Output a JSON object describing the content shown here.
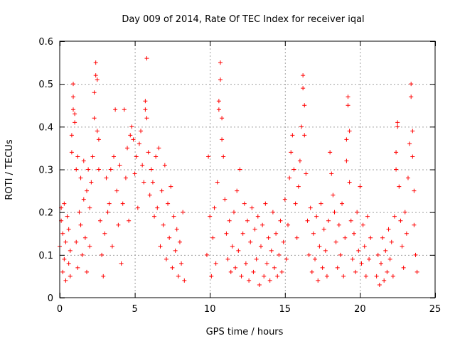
{
  "chart_data": {
    "type": "scatter",
    "title": "Day 009 of 2014, Rate Of TEC Index for receiver iqal",
    "xlabel": "GPS time / hours",
    "ylabel": "ROTI / TECUs",
    "xlim": [
      0,
      25
    ],
    "ylim": [
      0,
      0.6
    ],
    "xticks": [
      0,
      5,
      10,
      15,
      20,
      25
    ],
    "xtick_labels": [
      "0",
      "5",
      "10",
      "15",
      "20",
      "25"
    ],
    "yticks": [
      0,
      0.1,
      0.2,
      0.3,
      0.4,
      0.5,
      0.6
    ],
    "ytick_labels": [
      "0",
      "0.1",
      "0.2",
      "0.3",
      "0.4",
      "0.5",
      "0.6"
    ],
    "grid": true,
    "marker": "+",
    "color": "#ff0000",
    "series": [
      {
        "name": "ROTI",
        "points": [
          [
            0.0,
            0.12
          ],
          [
            0.1,
            0.18
          ],
          [
            0.1,
            0.21
          ],
          [
            0.2,
            0.06
          ],
          [
            0.2,
            0.15
          ],
          [
            0.3,
            0.22
          ],
          [
            0.3,
            0.09
          ],
          [
            0.4,
            0.04
          ],
          [
            0.4,
            0.13
          ],
          [
            0.5,
            0.19
          ],
          [
            0.6,
            0.08
          ],
          [
            0.6,
            0.16
          ],
          [
            0.7,
            0.05
          ],
          [
            0.7,
            0.11
          ],
          [
            0.8,
            0.38
          ],
          [
            0.8,
            0.34
          ],
          [
            0.9,
            0.5
          ],
          [
            0.9,
            0.47
          ],
          [
            0.9,
            0.44
          ],
          [
            1.0,
            0.43
          ],
          [
            1.0,
            0.41
          ],
          [
            1.1,
            0.13
          ],
          [
            1.1,
            0.3
          ],
          [
            1.2,
            0.33
          ],
          [
            1.2,
            0.07
          ],
          [
            1.3,
            0.2
          ],
          [
            1.4,
            0.17
          ],
          [
            1.4,
            0.28
          ],
          [
            1.5,
            0.1
          ],
          [
            1.6,
            0.23
          ],
          [
            1.6,
            0.32
          ],
          [
            1.7,
            0.14
          ],
          [
            1.8,
            0.06
          ],
          [
            1.8,
            0.25
          ],
          [
            1.9,
            0.3
          ],
          [
            2.0,
            0.12
          ],
          [
            2.0,
            0.21
          ],
          [
            2.1,
            0.27
          ],
          [
            2.2,
            0.33
          ],
          [
            2.3,
            0.42
          ],
          [
            2.3,
            0.48
          ],
          [
            2.4,
            0.55
          ],
          [
            2.4,
            0.52
          ],
          [
            2.5,
            0.51
          ],
          [
            2.5,
            0.39
          ],
          [
            2.6,
            0.37
          ],
          [
            2.6,
            0.3
          ],
          [
            2.7,
            0.18
          ],
          [
            2.8,
            0.1
          ],
          [
            2.9,
            0.05
          ],
          [
            3.0,
            0.15
          ],
          [
            3.1,
            0.28
          ],
          [
            3.2,
            0.2
          ],
          [
            3.3,
            0.22
          ],
          [
            3.4,
            0.3
          ],
          [
            3.5,
            0.12
          ],
          [
            3.6,
            0.33
          ],
          [
            3.7,
            0.44
          ],
          [
            3.8,
            0.25
          ],
          [
            3.9,
            0.17
          ],
          [
            4.0,
            0.31
          ],
          [
            4.1,
            0.08
          ],
          [
            4.2,
            0.22
          ],
          [
            4.3,
            0.44
          ],
          [
            4.4,
            0.28
          ],
          [
            4.5,
            0.35
          ],
          [
            4.6,
            0.18
          ],
          [
            4.7,
            0.38
          ],
          [
            4.8,
            0.4
          ],
          [
            4.9,
            0.37
          ],
          [
            5.0,
            0.29
          ],
          [
            5.1,
            0.33
          ],
          [
            5.2,
            0.21
          ],
          [
            5.3,
            0.36
          ],
          [
            5.4,
            0.39
          ],
          [
            5.5,
            0.31
          ],
          [
            5.6,
            0.27
          ],
          [
            5.7,
            0.46
          ],
          [
            5.7,
            0.44
          ],
          [
            5.8,
            0.56
          ],
          [
            5.8,
            0.42
          ],
          [
            5.9,
            0.34
          ],
          [
            6.0,
            0.24
          ],
          [
            6.1,
            0.3
          ],
          [
            6.2,
            0.27
          ],
          [
            6.3,
            0.19
          ],
          [
            6.4,
            0.33
          ],
          [
            6.5,
            0.21
          ],
          [
            6.6,
            0.35
          ],
          [
            6.7,
            0.12
          ],
          [
            6.8,
            0.25
          ],
          [
            6.9,
            0.17
          ],
          [
            7.0,
            0.31
          ],
          [
            7.1,
            0.09
          ],
          [
            7.2,
            0.22
          ],
          [
            7.3,
            0.14
          ],
          [
            7.4,
            0.26
          ],
          [
            7.5,
            0.07
          ],
          [
            7.6,
            0.19
          ],
          [
            7.7,
            0.11
          ],
          [
            7.8,
            0.16
          ],
          [
            7.9,
            0.05
          ],
          [
            8.0,
            0.13
          ],
          [
            8.1,
            0.08
          ],
          [
            8.2,
            0.2
          ],
          [
            8.3,
            0.04
          ],
          [
            9.8,
            0.1
          ],
          [
            9.9,
            0.33
          ],
          [
            10.0,
            0.19
          ],
          [
            10.1,
            0.05
          ],
          [
            10.2,
            0.14
          ],
          [
            10.3,
            0.21
          ],
          [
            10.4,
            0.08
          ],
          [
            10.5,
            0.27
          ],
          [
            10.6,
            0.46
          ],
          [
            10.6,
            0.44
          ],
          [
            10.7,
            0.55
          ],
          [
            10.7,
            0.51
          ],
          [
            10.8,
            0.42
          ],
          [
            10.8,
            0.37
          ],
          [
            10.9,
            0.33
          ],
          [
            11.0,
            0.23
          ],
          [
            11.1,
            0.15
          ],
          [
            11.2,
            0.09
          ],
          [
            11.3,
            0.18
          ],
          [
            11.4,
            0.06
          ],
          [
            11.5,
            0.12
          ],
          [
            11.6,
            0.2
          ],
          [
            11.7,
            0.07
          ],
          [
            11.8,
            0.25
          ],
          [
            11.9,
            0.11
          ],
          [
            12.0,
            0.3
          ],
          [
            12.1,
            0.05
          ],
          [
            12.2,
            0.15
          ],
          [
            12.3,
            0.22
          ],
          [
            12.4,
            0.08
          ],
          [
            12.5,
            0.18
          ],
          [
            12.6,
            0.04
          ],
          [
            12.7,
            0.13
          ],
          [
            12.8,
            0.21
          ],
          [
            12.9,
            0.06
          ],
          [
            13.0,
            0.16
          ],
          [
            13.1,
            0.09
          ],
          [
            13.2,
            0.19
          ],
          [
            13.3,
            0.03
          ],
          [
            13.4,
            0.12
          ],
          [
            13.5,
            0.17
          ],
          [
            13.6,
            0.05
          ],
          [
            13.7,
            0.22
          ],
          [
            13.8,
            0.08
          ],
          [
            13.9,
            0.14
          ],
          [
            14.0,
            0.04
          ],
          [
            14.1,
            0.11
          ],
          [
            14.2,
            0.2
          ],
          [
            14.3,
            0.07
          ],
          [
            14.4,
            0.15
          ],
          [
            14.5,
            0.05
          ],
          [
            14.6,
            0.1
          ],
          [
            14.7,
            0.18
          ],
          [
            14.8,
            0.06
          ],
          [
            14.9,
            0.13
          ],
          [
            15.0,
            0.23
          ],
          [
            15.1,
            0.09
          ],
          [
            15.2,
            0.17
          ],
          [
            15.3,
            0.28
          ],
          [
            15.4,
            0.34
          ],
          [
            15.5,
            0.38
          ],
          [
            15.6,
            0.3
          ],
          [
            15.7,
            0.22
          ],
          [
            15.8,
            0.14
          ],
          [
            15.9,
            0.26
          ],
          [
            16.0,
            0.32
          ],
          [
            16.1,
            0.4
          ],
          [
            16.2,
            0.49
          ],
          [
            16.2,
            0.52
          ],
          [
            16.3,
            0.45
          ],
          [
            16.3,
            0.38
          ],
          [
            16.4,
            0.29
          ],
          [
            16.5,
            0.18
          ],
          [
            16.6,
            0.1
          ],
          [
            16.7,
            0.21
          ],
          [
            16.8,
            0.06
          ],
          [
            16.9,
            0.15
          ],
          [
            17.0,
            0.09
          ],
          [
            17.1,
            0.19
          ],
          [
            17.2,
            0.04
          ],
          [
            17.3,
            0.12
          ],
          [
            17.4,
            0.22
          ],
          [
            17.5,
            0.07
          ],
          [
            17.6,
            0.16
          ],
          [
            17.7,
            0.11
          ],
          [
            17.8,
            0.05
          ],
          [
            17.9,
            0.18
          ],
          [
            18.0,
            0.34
          ],
          [
            18.1,
            0.29
          ],
          [
            18.2,
            0.24
          ],
          [
            18.3,
            0.2
          ],
          [
            18.4,
            0.13
          ],
          [
            18.5,
            0.07
          ],
          [
            18.6,
            0.17
          ],
          [
            18.7,
            0.1
          ],
          [
            18.8,
            0.22
          ],
          [
            18.9,
            0.05
          ],
          [
            19.0,
            0.14
          ],
          [
            19.1,
            0.37
          ],
          [
            19.1,
            0.32
          ],
          [
            19.2,
            0.47
          ],
          [
            19.2,
            0.45
          ],
          [
            19.3,
            0.39
          ],
          [
            19.3,
            0.27
          ],
          [
            19.4,
            0.18
          ],
          [
            19.5,
            0.09
          ],
          [
            19.6,
            0.15
          ],
          [
            19.7,
            0.06
          ],
          [
            19.8,
            0.2
          ],
          [
            19.9,
            0.11
          ],
          [
            20.0,
            0.26
          ],
          [
            20.1,
            0.08
          ],
          [
            20.2,
            0.17
          ],
          [
            20.3,
            0.12
          ],
          [
            20.4,
            0.05
          ],
          [
            20.5,
            0.19
          ],
          [
            20.6,
            0.09
          ],
          [
            20.7,
            0.14
          ],
          [
            21.1,
            0.05
          ],
          [
            21.2,
            0.1
          ],
          [
            21.3,
            0.03
          ],
          [
            21.4,
            0.08
          ],
          [
            21.5,
            0.14
          ],
          [
            21.6,
            0.04
          ],
          [
            21.7,
            0.11
          ],
          [
            21.8,
            0.06
          ],
          [
            21.9,
            0.16
          ],
          [
            22.0,
            0.09
          ],
          [
            22.1,
            0.13
          ],
          [
            22.2,
            0.05
          ],
          [
            22.3,
            0.19
          ],
          [
            22.4,
            0.34
          ],
          [
            22.4,
            0.3
          ],
          [
            22.5,
            0.41
          ],
          [
            22.5,
            0.4
          ],
          [
            22.6,
            0.26
          ],
          [
            22.7,
            0.18
          ],
          [
            22.8,
            0.12
          ],
          [
            22.9,
            0.07
          ],
          [
            23.0,
            0.2
          ],
          [
            23.1,
            0.15
          ],
          [
            23.2,
            0.28
          ],
          [
            23.3,
            0.36
          ],
          [
            23.4,
            0.47
          ],
          [
            23.4,
            0.5
          ],
          [
            23.5,
            0.39
          ],
          [
            23.5,
            0.33
          ],
          [
            23.6,
            0.25
          ],
          [
            23.6,
            0.17
          ],
          [
            23.7,
            0.1
          ],
          [
            23.8,
            0.06
          ]
        ]
      }
    ]
  }
}
